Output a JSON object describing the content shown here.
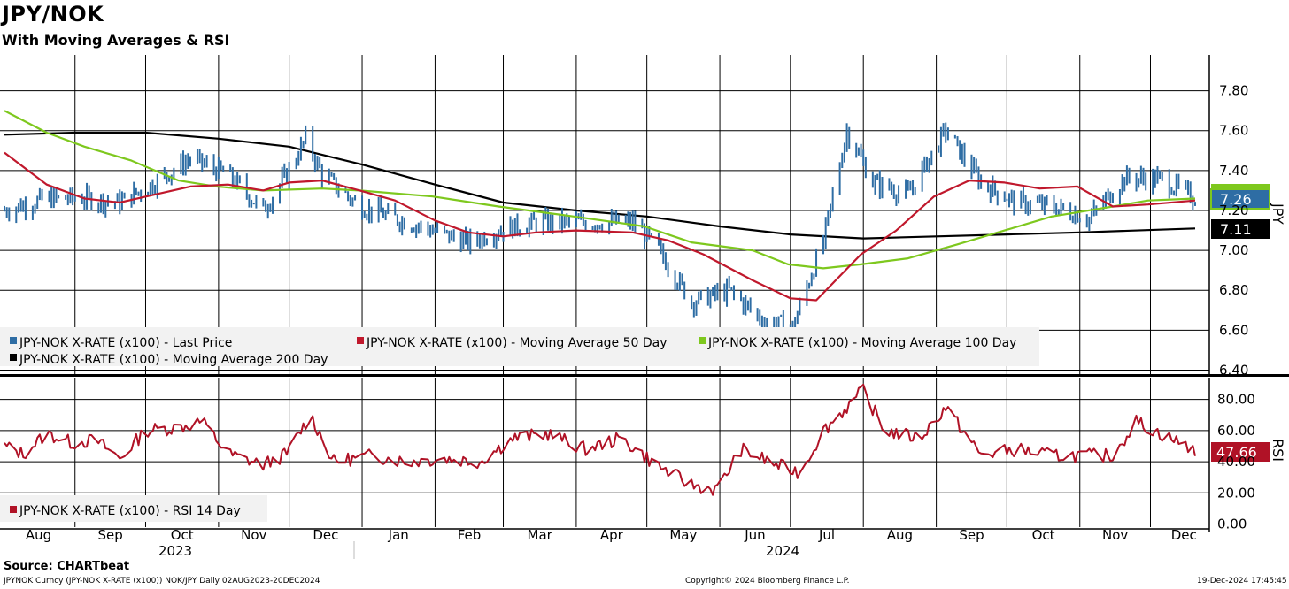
{
  "header": {
    "title": "JPY/NOK",
    "subtitle": "With Moving Averages & RSI"
  },
  "footer": {
    "source": "Source: CHARTbeat",
    "ticker_info": "JPYNOK Curncy (JPY-NOK X-RATE  (x100)) NOK/JPY  Daily 02AUG2023-20DEC2024",
    "copyright": "Copyright© 2024 Bloomberg Finance L.P.",
    "timestamp": "19-Dec-2024 17:45:45"
  },
  "colors": {
    "price": "#2e6da4",
    "ma50": "#c0182c",
    "ma100": "#7ec81e",
    "ma200": "#000000",
    "rsi": "#b01226"
  },
  "chart_data": [
    {
      "type": "line",
      "panel": "price",
      "ylabel": "JPY",
      "ylim": [
        6.38,
        7.98
      ],
      "yticks": [
        "7.80",
        "7.60",
        "7.40",
        "7.20",
        "7.00",
        "6.80",
        "6.60",
        "6.40"
      ],
      "x_labels": [
        "Aug",
        "Sep",
        "Oct",
        "Nov",
        "Dec",
        "Jan",
        "Feb",
        "Mar",
        "Apr",
        "May",
        "Jun",
        "Jul",
        "Aug",
        "Sep",
        "Oct",
        "Nov",
        "Dec"
      ],
      "year_labels": [
        "2023",
        "2024"
      ],
      "x_range": [
        "2023-08-02",
        "2024-12-20"
      ],
      "grid": true,
      "legend": "bottom-left",
      "last_values": {
        "ma100_and_price": "7.26",
        "ma200": "7.11"
      },
      "series": [
        {
          "name": "JPY-NOK X-RATE (x100) - Last Price",
          "style": "ohlc-bars",
          "points": [
            [
              "2023-08-02",
              7.2
            ],
            [
              "2023-08-20",
              7.26
            ],
            [
              "2023-09-05",
              7.26
            ],
            [
              "2023-09-20",
              7.24
            ],
            [
              "2023-10-05",
              7.34
            ],
            [
              "2023-10-20",
              7.46
            ],
            [
              "2023-11-05",
              7.38
            ],
            [
              "2023-11-20",
              7.2
            ],
            [
              "2023-12-01",
              7.4
            ],
            [
              "2023-12-08",
              7.56
            ],
            [
              "2023-12-15",
              7.38
            ],
            [
              "2023-12-31",
              7.22
            ],
            [
              "2024-01-15",
              7.16
            ],
            [
              "2024-01-31",
              7.1
            ],
            [
              "2024-02-15",
              7.04
            ],
            [
              "2024-02-28",
              7.1
            ],
            [
              "2024-03-15",
              7.14
            ],
            [
              "2024-03-31",
              7.14
            ],
            [
              "2024-04-10",
              7.14
            ],
            [
              "2024-04-25",
              7.14
            ],
            [
              "2024-05-05",
              7.02
            ],
            [
              "2024-05-20",
              6.74
            ],
            [
              "2024-06-05",
              6.8
            ],
            [
              "2024-06-20",
              6.64
            ],
            [
              "2024-07-02",
              6.62
            ],
            [
              "2024-07-15",
              7.05
            ],
            [
              "2024-07-25",
              7.6
            ],
            [
              "2024-08-05",
              7.34
            ],
            [
              "2024-08-20",
              7.28
            ],
            [
              "2024-09-05",
              7.6
            ],
            [
              "2024-09-20",
              7.34
            ],
            [
              "2024-10-05",
              7.24
            ],
            [
              "2024-10-20",
              7.22
            ],
            [
              "2024-11-05",
              7.16
            ],
            [
              "2024-11-20",
              7.36
            ],
            [
              "2024-12-05",
              7.36
            ],
            [
              "2024-12-20",
              7.26
            ]
          ]
        },
        {
          "name": "JPY-NOK X-RATE (x100) - Moving Average 50 Day",
          "points": [
            [
              "2023-08-02",
              7.49
            ],
            [
              "2023-08-20",
              7.33
            ],
            [
              "2023-09-05",
              7.26
            ],
            [
              "2023-09-20",
              7.24
            ],
            [
              "2023-10-05",
              7.28
            ],
            [
              "2023-10-20",
              7.32
            ],
            [
              "2023-11-05",
              7.33
            ],
            [
              "2023-11-20",
              7.3
            ],
            [
              "2023-12-01",
              7.34
            ],
            [
              "2023-12-15",
              7.35
            ],
            [
              "2023-12-31",
              7.3
            ],
            [
              "2024-01-15",
              7.25
            ],
            [
              "2024-02-01",
              7.15
            ],
            [
              "2024-02-15",
              7.09
            ],
            [
              "2024-03-01",
              7.07
            ],
            [
              "2024-03-15",
              7.09
            ],
            [
              "2024-04-01",
              7.1
            ],
            [
              "2024-04-25",
              7.09
            ],
            [
              "2024-05-10",
              7.05
            ],
            [
              "2024-05-25",
              6.98
            ],
            [
              "2024-06-15",
              6.85
            ],
            [
              "2024-07-01",
              6.76
            ],
            [
              "2024-07-12",
              6.75
            ],
            [
              "2024-07-31",
              6.98
            ],
            [
              "2024-08-15",
              7.1
            ],
            [
              "2024-08-31",
              7.27
            ],
            [
              "2024-09-15",
              7.35
            ],
            [
              "2024-09-30",
              7.34
            ],
            [
              "2024-10-15",
              7.31
            ],
            [
              "2024-10-31",
              7.32
            ],
            [
              "2024-11-15",
              7.22
            ],
            [
              "2024-11-30",
              7.23
            ],
            [
              "2024-12-20",
              7.25
            ]
          ]
        },
        {
          "name": "JPY-NOK X-RATE (x100) - Moving Average 100 Day",
          "points": [
            [
              "2023-08-02",
              7.7
            ],
            [
              "2023-08-20",
              7.59
            ],
            [
              "2023-09-05",
              7.52
            ],
            [
              "2023-09-25",
              7.45
            ],
            [
              "2023-10-15",
              7.35
            ],
            [
              "2023-10-31",
              7.32
            ],
            [
              "2023-11-20",
              7.3
            ],
            [
              "2023-12-15",
              7.31
            ],
            [
              "2023-12-31",
              7.3
            ],
            [
              "2024-01-31",
              7.27
            ],
            [
              "2024-02-28",
              7.22
            ],
            [
              "2024-03-31",
              7.17
            ],
            [
              "2024-04-30",
              7.12
            ],
            [
              "2024-05-20",
              7.04
            ],
            [
              "2024-06-15",
              7.0
            ],
            [
              "2024-06-30",
              6.93
            ],
            [
              "2024-07-15",
              6.91
            ],
            [
              "2024-07-31",
              6.93
            ],
            [
              "2024-08-20",
              6.96
            ],
            [
              "2024-09-10",
              7.03
            ],
            [
              "2024-09-30",
              7.1
            ],
            [
              "2024-10-20",
              7.17
            ],
            [
              "2024-11-15",
              7.22
            ],
            [
              "2024-11-30",
              7.25
            ],
            [
              "2024-12-20",
              7.26
            ]
          ]
        },
        {
          "name": "JPY-NOK X-RATE (x100) - Moving Average 200 Day",
          "points": [
            [
              "2023-08-02",
              7.58
            ],
            [
              "2023-09-01",
              7.59
            ],
            [
              "2023-10-01",
              7.59
            ],
            [
              "2023-11-01",
              7.56
            ],
            [
              "2023-12-01",
              7.52
            ],
            [
              "2024-01-01",
              7.43
            ],
            [
              "2024-02-01",
              7.33
            ],
            [
              "2024-03-01",
              7.24
            ],
            [
              "2024-04-01",
              7.2
            ],
            [
              "2024-05-01",
              7.17
            ],
            [
              "2024-06-01",
              7.12
            ],
            [
              "2024-07-01",
              7.08
            ],
            [
              "2024-08-01",
              7.06
            ],
            [
              "2024-09-01",
              7.07
            ],
            [
              "2024-10-01",
              7.08
            ],
            [
              "2024-11-01",
              7.09
            ],
            [
              "2024-12-20",
              7.11
            ]
          ]
        }
      ]
    },
    {
      "type": "line",
      "panel": "rsi",
      "ylabel": "RSI",
      "ylim": [
        -2,
        94
      ],
      "yticks": [
        "80.00",
        "60.00",
        "40.00",
        "20.00",
        "0.00"
      ],
      "grid": true,
      "legend": "bottom-left",
      "last_value": "47.66",
      "series": [
        {
          "name": "JPY-NOK X-RATE (x100) - RSI 14 Day",
          "points": [
            [
              "2023-08-02",
              50
            ],
            [
              "2023-08-10",
              45
            ],
            [
              "2023-08-20",
              58
            ],
            [
              "2023-08-31",
              52
            ],
            [
              "2023-09-10",
              54
            ],
            [
              "2023-09-20",
              42
            ],
            [
              "2023-10-01",
              60
            ],
            [
              "2023-10-15",
              62
            ],
            [
              "2023-10-25",
              66
            ],
            [
              "2023-11-05",
              45
            ],
            [
              "2023-11-20",
              38
            ],
            [
              "2023-11-30",
              45
            ],
            [
              "2023-12-10",
              70
            ],
            [
              "2023-12-20",
              40
            ],
            [
              "2024-01-05",
              44
            ],
            [
              "2024-01-20",
              40
            ],
            [
              "2024-02-05",
              42
            ],
            [
              "2024-02-20",
              40
            ],
            [
              "2024-03-05",
              55
            ],
            [
              "2024-03-20",
              58
            ],
            [
              "2024-04-05",
              48
            ],
            [
              "2024-04-20",
              55
            ],
            [
              "2024-05-05",
              38
            ],
            [
              "2024-05-20",
              25
            ],
            [
              "2024-05-31",
              22
            ],
            [
              "2024-06-10",
              48
            ],
            [
              "2024-06-25",
              38
            ],
            [
              "2024-07-05",
              33
            ],
            [
              "2024-07-15",
              60
            ],
            [
              "2024-07-25",
              75
            ],
            [
              "2024-08-01",
              86
            ],
            [
              "2024-08-10",
              60
            ],
            [
              "2024-08-25",
              55
            ],
            [
              "2024-09-05",
              75
            ],
            [
              "2024-09-20",
              44
            ],
            [
              "2024-10-05",
              48
            ],
            [
              "2024-10-20",
              44
            ],
            [
              "2024-11-05",
              44
            ],
            [
              "2024-11-15",
              44
            ],
            [
              "2024-11-25",
              66
            ],
            [
              "2024-12-05",
              58
            ],
            [
              "2024-12-20",
              47.66
            ]
          ]
        }
      ]
    }
  ]
}
